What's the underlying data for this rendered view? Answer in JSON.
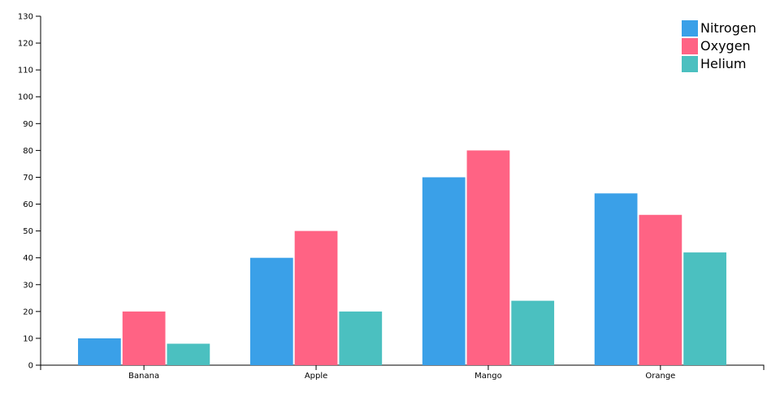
{
  "chart_data": {
    "type": "bar",
    "categories": [
      "Banana",
      "Apple",
      "Mango",
      "Orange"
    ],
    "series": [
      {
        "name": "Nitrogen",
        "color": "#3aa0e8",
        "values": [
          10,
          40,
          70,
          64
        ]
      },
      {
        "name": "Oxygen",
        "color": "#ff6384",
        "values": [
          20,
          50,
          80,
          56
        ]
      },
      {
        "name": "Helium",
        "color": "#4bc0c0",
        "values": [
          8,
          20,
          24,
          42
        ]
      }
    ],
    "ylim": [
      0,
      130
    ],
    "yticks": [
      0,
      10,
      20,
      30,
      40,
      50,
      60,
      70,
      80,
      90,
      100,
      110,
      120,
      130
    ],
    "legend": "top-right"
  }
}
